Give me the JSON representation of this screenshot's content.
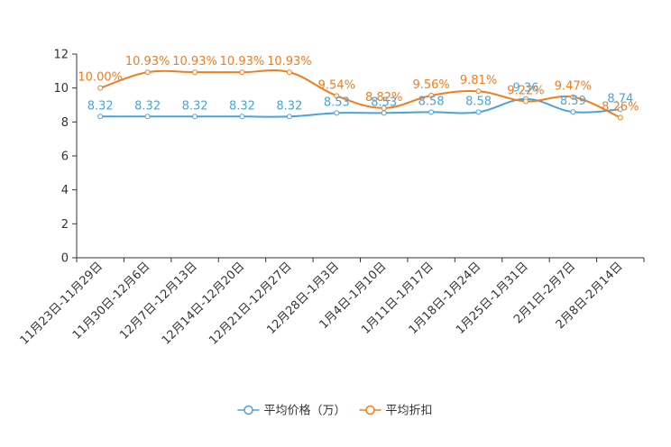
{
  "chart_data": {
    "type": "line",
    "title": "",
    "xlabel": "",
    "ylabel": "",
    "ylim": [
      0,
      12
    ],
    "yticks": [
      0,
      2,
      4,
      6,
      8,
      10,
      12
    ],
    "categories": [
      "11月23日-11月29日",
      "11月30日-12月6日",
      "12月7日-12月13日",
      "12月14日-12月20日",
      "12月21日-12月27日",
      "12月28日-1月3日",
      "1月4日-1月10日",
      "1月11日-1月17日",
      "1月18日-1月24日",
      "1月25日-1月31日",
      "2月1日-2月7日",
      "2月8日-2月14日"
    ],
    "series": [
      {
        "name": "平均价格（万）",
        "color": "#4aa3d9",
        "values": [
          8.32,
          8.32,
          8.32,
          8.32,
          8.32,
          8.53,
          8.53,
          8.58,
          8.58,
          9.36,
          8.59,
          8.74
        ],
        "labels": [
          "8.32",
          "8.32",
          "8.32",
          "8.32",
          "8.32",
          "8.53",
          "8.53",
          "8.58",
          "8.58",
          "9.36",
          "8.59",
          "8.74"
        ]
      },
      {
        "name": "平均折扣",
        "color": "#f07d1e",
        "values": [
          10.0,
          10.93,
          10.93,
          10.93,
          10.93,
          9.54,
          8.82,
          9.56,
          9.81,
          9.22,
          9.47,
          8.26
        ],
        "labels": [
          "10.00%",
          "10.93%",
          "10.93%",
          "10.93%",
          "10.93%",
          "9.54%",
          "8.82%",
          "9.56%",
          "9.81%",
          "9.22%",
          "9.47%",
          "8.26%"
        ]
      }
    ],
    "legend_position": "bottom-center"
  }
}
